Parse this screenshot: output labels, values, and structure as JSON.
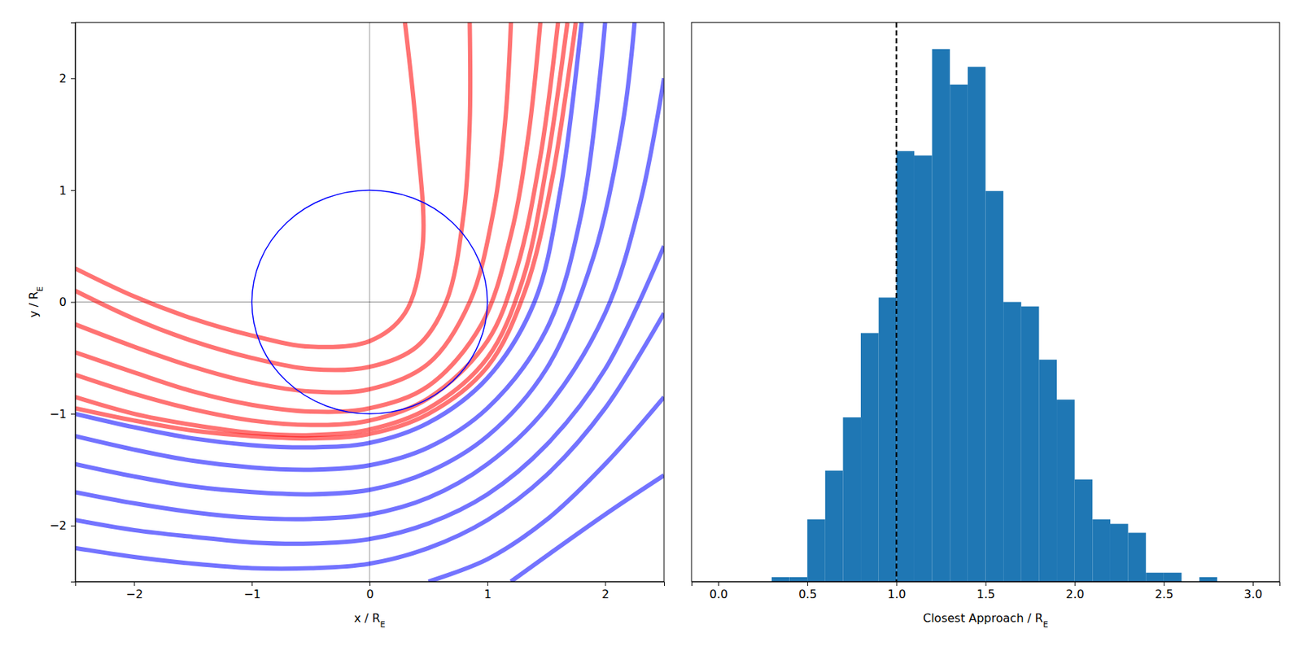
{
  "chart_data": [
    {
      "type": "line",
      "xlabel": "x / RE",
      "ylabel": "y / RE",
      "xlim": [
        -2.5,
        2.5
      ],
      "ylim": [
        -2.5,
        2.5
      ],
      "xticks": [
        {
          "value": -2,
          "label": "−2"
        },
        {
          "value": -1,
          "label": "−1"
        },
        0,
        1,
        2
      ],
      "yticks": [
        {
          "value": -2,
          "label": "−2"
        },
        {
          "value": -1,
          "label": "−1"
        },
        0,
        1,
        2
      ],
      "hlines": [
        0
      ],
      "vlines": [
        0
      ],
      "circle": {
        "center": [
          0,
          0
        ],
        "radius": 1,
        "color": "#0000ff"
      },
      "series": [
        {
          "color": "#0000ff",
          "x": [
            1.2,
            2.0,
            2.5
          ],
          "y": [
            -2.5,
            -1.9,
            -1.55
          ]
        },
        {
          "color": "#0000ff",
          "x": [
            0.5,
            1.0,
            1.5,
            2.0,
            2.5
          ],
          "y": [
            -2.5,
            -2.3,
            -1.95,
            -1.45,
            -0.85
          ]
        },
        {
          "color": "#0000ff",
          "x": [
            -2.5,
            -2.0,
            -1.5,
            -1.0,
            -0.5,
            0.0,
            0.5,
            1.0,
            1.5,
            2.0,
            2.5
          ],
          "y": [
            -2.2,
            -2.28,
            -2.34,
            -2.38,
            -2.38,
            -2.34,
            -2.2,
            -1.95,
            -1.55,
            -0.95,
            -0.1
          ]
        },
        {
          "color": "#0000ff",
          "x": [
            -2.5,
            -2.0,
            -1.5,
            -1.0,
            -0.5,
            0.0,
            0.5,
            1.0,
            1.5,
            2.0,
            2.5
          ],
          "y": [
            -1.95,
            -2.04,
            -2.1,
            -2.15,
            -2.16,
            -2.12,
            -1.98,
            -1.72,
            -1.28,
            -0.6,
            0.5
          ]
        },
        {
          "color": "#0000ff",
          "x": [
            -2.5,
            -2.0,
            -1.5,
            -1.0,
            -0.5,
            0.0,
            0.5,
            1.0,
            1.5,
            2.0,
            2.3,
            2.5
          ],
          "y": [
            -1.7,
            -1.8,
            -1.88,
            -1.93,
            -1.94,
            -1.9,
            -1.75,
            -1.45,
            -0.95,
            -0.1,
            0.9,
            2.0
          ]
        },
        {
          "color": "#0000ff",
          "x": [
            -2.5,
            -2.0,
            -1.5,
            -1.0,
            -0.5,
            0.0,
            0.5,
            1.0,
            1.5,
            1.9,
            2.15,
            2.25
          ],
          "y": [
            -1.45,
            -1.56,
            -1.65,
            -1.7,
            -1.72,
            -1.68,
            -1.52,
            -1.2,
            -0.6,
            0.4,
            1.6,
            2.5
          ]
        },
        {
          "color": "#0000ff",
          "x": [
            -2.5,
            -2.0,
            -1.5,
            -1.0,
            -0.5,
            0.0,
            0.5,
            1.0,
            1.5,
            1.8,
            2.0
          ],
          "y": [
            -1.2,
            -1.32,
            -1.42,
            -1.48,
            -1.5,
            -1.46,
            -1.3,
            -0.95,
            -0.25,
            0.8,
            2.5
          ]
        },
        {
          "color": "#0000ff",
          "x": [
            -2.5,
            -2.0,
            -1.5,
            -1.0,
            -0.5,
            0.0,
            0.5,
            1.0,
            1.4,
            1.62,
            1.8
          ],
          "y": [
            -1.0,
            -1.12,
            -1.22,
            -1.28,
            -1.3,
            -1.26,
            -1.08,
            -0.68,
            0.0,
            1.0,
            2.5
          ]
        },
        {
          "color": "#ff0000",
          "x": [
            -2.5,
            -2.0,
            -1.5,
            -1.0,
            -0.5,
            0.0,
            0.3,
            0.45,
            0.4,
            0.3
          ],
          "y": [
            0.3,
            0.05,
            -0.15,
            -0.3,
            -0.4,
            -0.35,
            -0.1,
            0.5,
            1.5,
            2.5
          ]
        },
        {
          "color": "#ff0000",
          "x": [
            -2.5,
            -2.0,
            -1.5,
            -1.0,
            -0.5,
            0.0,
            0.4,
            0.65,
            0.8,
            0.85,
            0.85
          ],
          "y": [
            0.1,
            -0.15,
            -0.35,
            -0.5,
            -0.6,
            -0.58,
            -0.4,
            0.0,
            0.8,
            1.6,
            2.5
          ]
        },
        {
          "color": "#ff0000",
          "x": [
            -2.5,
            -2.0,
            -1.5,
            -1.0,
            -0.5,
            0.0,
            0.5,
            0.85,
            1.05,
            1.15,
            1.2
          ],
          "y": [
            -0.2,
            -0.4,
            -0.58,
            -0.72,
            -0.8,
            -0.78,
            -0.55,
            0.0,
            0.8,
            1.6,
            2.5
          ]
        },
        {
          "color": "#ff0000",
          "x": [
            -2.5,
            -2.0,
            -1.5,
            -1.0,
            -0.5,
            0.0,
            0.5,
            0.95,
            1.2,
            1.35,
            1.45
          ],
          "y": [
            -0.45,
            -0.63,
            -0.8,
            -0.92,
            -0.98,
            -0.95,
            -0.75,
            -0.2,
            0.6,
            1.5,
            2.5
          ]
        },
        {
          "color": "#ff0000",
          "x": [
            -2.5,
            -2.0,
            -1.5,
            -1.0,
            -0.5,
            0.0,
            0.5,
            1.0,
            1.25,
            1.45,
            1.6
          ],
          "y": [
            -0.65,
            -0.82,
            -0.96,
            -1.06,
            -1.1,
            -1.06,
            -0.86,
            -0.35,
            0.3,
            1.3,
            2.5
          ]
        },
        {
          "color": "#ff0000",
          "x": [
            -2.5,
            -2.0,
            -1.5,
            -1.0,
            -0.5,
            0.0,
            0.5,
            1.0,
            1.3,
            1.5,
            1.68
          ],
          "y": [
            -0.85,
            -1.0,
            -1.1,
            -1.17,
            -1.19,
            -1.14,
            -0.95,
            -0.5,
            0.2,
            1.2,
            2.5
          ]
        },
        {
          "color": "#ff0000",
          "x": [
            -2.5,
            -2.0,
            -1.5,
            -1.0,
            -0.5,
            0.0,
            0.5,
            1.0,
            1.32,
            1.55,
            1.75
          ],
          "y": [
            -0.95,
            -1.06,
            -1.15,
            -1.2,
            -1.22,
            -1.18,
            -1.0,
            -0.58,
            0.1,
            1.1,
            2.5
          ]
        }
      ]
    },
    {
      "type": "histogram",
      "xlabel": "Closest Approach / RE",
      "bins": [
        0.3,
        0.4,
        0.5,
        0.6,
        0.7,
        0.8,
        0.9,
        1.0,
        1.1,
        1.2,
        1.3,
        1.4,
        1.5,
        1.6,
        1.7,
        1.8,
        1.9,
        2.0,
        2.1,
        2.2,
        2.3,
        2.4,
        2.5,
        2.6,
        2.7,
        2.8
      ],
      "counts": [
        1,
        1,
        14,
        25,
        37,
        56,
        64,
        97,
        96,
        120,
        112,
        116,
        88,
        63,
        62,
        50,
        41,
        23,
        14,
        13,
        11,
        2,
        2,
        0,
        1
      ],
      "color": "#1f77b4",
      "xlim": [
        -0.15,
        3.15
      ],
      "ylim": [
        0,
        126
      ],
      "xticks": [
        {
          "value": 0,
          "label": "0.0"
        },
        0.5,
        {
          "value": 1,
          "label": "1.0"
        },
        1.5,
        {
          "value": 2,
          "label": "2.0"
        },
        2.5,
        {
          "value": 3,
          "label": "3.0"
        }
      ],
      "vlines": [
        1
      ],
      "tick_labels": "x"
    }
  ]
}
